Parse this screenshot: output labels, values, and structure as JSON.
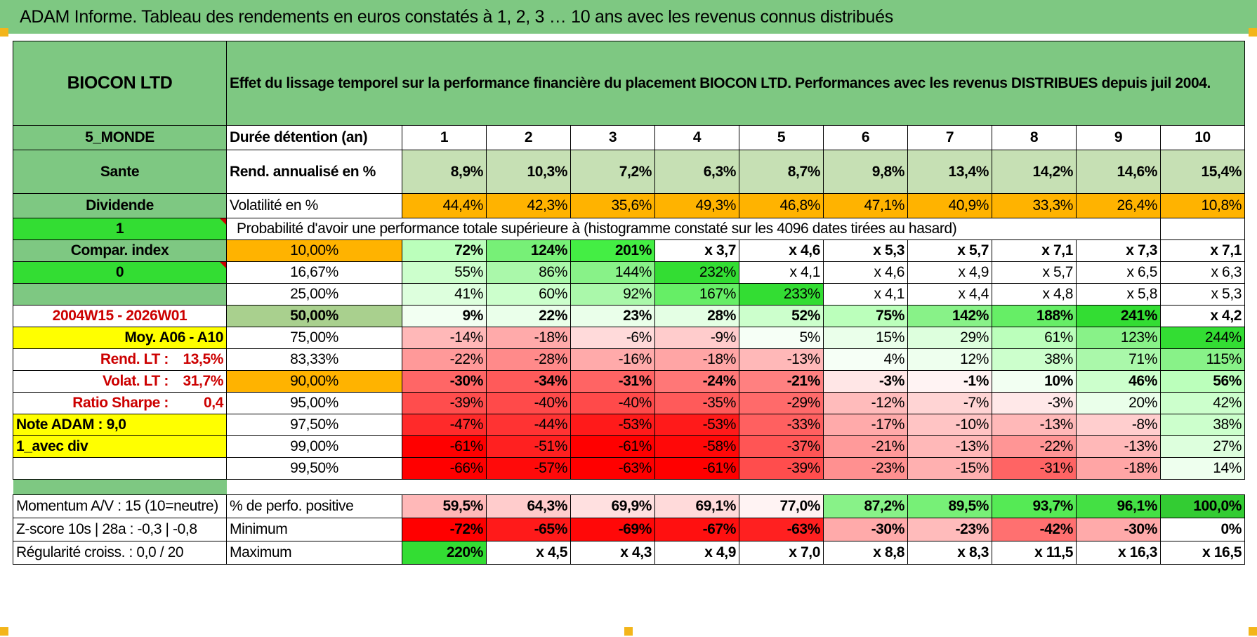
{
  "title": "ADAM Informe. Tableau des rendements en euros constatés à 1, 2, 3 … 10 ans avec les revenus connus distribués",
  "header": {
    "fund": "BIOCON LTD",
    "description": "Effet du lissage temporel sur la performance financière du placement BIOCON LTD. Performances avec les revenus DISTRIBUES depuis juil 2004."
  },
  "side": {
    "category": "5_MONDE",
    "sector": "Sante",
    "dividend": "Dividende",
    "flag_one": "1",
    "compar": "Compar. index",
    "flag_zero": "0",
    "period": "2004W15 - 2026W01",
    "moy": "Moy. A06 - A10",
    "rend_lt_label": "Rend. LT :",
    "rend_lt_value": "13,5%",
    "volat_lt_label": "Volat. LT :",
    "volat_lt_value": "31,7%",
    "sharpe_label": "Ratio Sharpe :",
    "sharpe_value": "0,4",
    "note": "Note ADAM : 9,0",
    "avec_div": "1_avec div",
    "momentum": "Momentum A/V : 15 (10=neutre)",
    "zscore": "Z-score 10s | 28a : -0,3 | -0,8",
    "regularite": "Régularité croiss. : 0,0 / 20"
  },
  "labels": {
    "duree": "Durée détention (an)",
    "rend": "Rend. annualisé en %",
    "volat": "Volatilité en %",
    "proba": "Probabilité d'avoir une performance totale supérieure à (histogramme constaté sur les 4096 dates tirées au hasard)",
    "pct_pos": "% de perfo. positive",
    "minimum": "Minimum",
    "maximum": "Maximum"
  },
  "years": [
    "1",
    "2",
    "3",
    "4",
    "5",
    "6",
    "7",
    "8",
    "9",
    "10"
  ],
  "rend": [
    "8,9%",
    "10,3%",
    "7,2%",
    "6,3%",
    "8,7%",
    "9,8%",
    "13,4%",
    "14,2%",
    "14,6%",
    "15,4%"
  ],
  "volat": [
    "44,4%",
    "42,3%",
    "35,6%",
    "49,3%",
    "46,8%",
    "47,1%",
    "40,9%",
    "33,3%",
    "26,4%",
    "10,8%"
  ],
  "proba_rows": [
    {
      "pct": "10,00%",
      "vals": [
        "72%",
        "124%",
        "201%",
        "x 3,7",
        "x 4,6",
        "x 5,3",
        "x 5,7",
        "x 7,1",
        "x 7,3",
        "x 7,1"
      ],
      "colors": [
        "#bbffbb",
        "#77f077",
        "#44ee44",
        "#ffffff",
        "#ffffff",
        "#ffffff",
        "#ffffff",
        "#ffffff",
        "#ffffff",
        "#ffffff"
      ]
    },
    {
      "pct": "16,67%",
      "vals": [
        "55%",
        "86%",
        "144%",
        "232%",
        "x 4,1",
        "x 4,6",
        "x 4,9",
        "x 5,7",
        "x 6,5",
        "x 6,3"
      ],
      "colors": [
        "#ccffcc",
        "#aaf8aa",
        "#88f288",
        "#33dd33",
        "#ffffff",
        "#ffffff",
        "#ffffff",
        "#ffffff",
        "#ffffff",
        "#ffffff"
      ]
    },
    {
      "pct": "25,00%",
      "vals": [
        "41%",
        "60%",
        "92%",
        "167%",
        "233%",
        "x 4,1",
        "x 4,4",
        "x 4,8",
        "x 5,8",
        "x 5,3"
      ],
      "colors": [
        "#ddffdd",
        "#ccffcc",
        "#aaf8aa",
        "#66ee66",
        "#33dd33",
        "#ffffff",
        "#ffffff",
        "#ffffff",
        "#ffffff",
        "#ffffff"
      ]
    },
    {
      "pct": "50,00%",
      "vals": [
        "9%",
        "22%",
        "23%",
        "28%",
        "52%",
        "75%",
        "142%",
        "188%",
        "241%",
        "x 4,2"
      ],
      "colors": [
        "#f2fff2",
        "#eaffea",
        "#eaffea",
        "#e4ffe4",
        "#ccffcc",
        "#bbffbb",
        "#88f288",
        "#66ee66",
        "#33dd33",
        "#ffffff"
      ]
    },
    {
      "pct": "75,00%",
      "vals": [
        "-14%",
        "-18%",
        "-6%",
        "-9%",
        "5%",
        "15%",
        "29%",
        "61%",
        "123%",
        "244%"
      ],
      "colors": [
        "#ffb8b8",
        "#ffaaaa",
        "#ffdada",
        "#ffcccc",
        "#f6fff6",
        "#eaffea",
        "#ddffdd",
        "#bbffbb",
        "#88f288",
        "#33dd33"
      ]
    },
    {
      "pct": "83,33%",
      "vals": [
        "-22%",
        "-28%",
        "-16%",
        "-18%",
        "-13%",
        "4%",
        "12%",
        "38%",
        "71%",
        "115%"
      ],
      "colors": [
        "#ff9999",
        "#ff8a8a",
        "#ffaaaa",
        "#ffa5a5",
        "#ffb8b8",
        "#f6fff6",
        "#eeffee",
        "#ccffcc",
        "#aaf8aa",
        "#88f288"
      ]
    },
    {
      "pct": "90,00%",
      "vals": [
        "-30%",
        "-34%",
        "-31%",
        "-24%",
        "-21%",
        "-3%",
        "-1%",
        "10%",
        "46%",
        "56%"
      ],
      "colors": [
        "#ff6666",
        "#ff5a5a",
        "#ff6464",
        "#ff7777",
        "#ff8080",
        "#ffe6e6",
        "#fff3f3",
        "#f2fff2",
        "#ccffcc",
        "#bbffbb"
      ]
    },
    {
      "pct": "95,00%",
      "vals": [
        "-39%",
        "-40%",
        "-40%",
        "-35%",
        "-29%",
        "-12%",
        "-7%",
        "-3%",
        "20%",
        "42%"
      ],
      "colors": [
        "#ff4d4d",
        "#ff4a4a",
        "#ff4a4a",
        "#ff5a5a",
        "#ff6a6a",
        "#ffbbbb",
        "#ffd4d4",
        "#ffe8e8",
        "#eaffea",
        "#ccffcc"
      ]
    },
    {
      "pct": "97,50%",
      "vals": [
        "-47%",
        "-44%",
        "-53%",
        "-53%",
        "-33%",
        "-17%",
        "-10%",
        "-13%",
        "-8%",
        "38%"
      ],
      "colors": [
        "#ff2a2a",
        "#ff3333",
        "#ff1a1a",
        "#ff1a1a",
        "#ff6060",
        "#ffaaaa",
        "#ffc4c4",
        "#ffb8b8",
        "#ffcece",
        "#ccffcc"
      ]
    },
    {
      "pct": "99,00%",
      "vals": [
        "-61%",
        "-51%",
        "-61%",
        "-58%",
        "-37%",
        "-21%",
        "-13%",
        "-22%",
        "-13%",
        "27%"
      ],
      "colors": [
        "#ff0000",
        "#ff2020",
        "#ff0000",
        "#ff0808",
        "#ff5555",
        "#ff9a9a",
        "#ffb8b8",
        "#ff9595",
        "#ffb8b8",
        "#ddffdd"
      ]
    },
    {
      "pct": "99,50%",
      "vals": [
        "-66%",
        "-57%",
        "-63%",
        "-61%",
        "-39%",
        "-23%",
        "-15%",
        "-31%",
        "-18%",
        "14%"
      ],
      "colors": [
        "#ff0000",
        "#ff0a0a",
        "#ff0000",
        "#ff0000",
        "#ff4d4d",
        "#ff9090",
        "#ffb0b0",
        "#ff6464",
        "#ffa5a5",
        "#eeffee"
      ]
    }
  ],
  "pct_pos": [
    "59,5%",
    "64,3%",
    "69,9%",
    "69,1%",
    "77,0%",
    "87,2%",
    "89,5%",
    "93,7%",
    "96,1%",
    "100,0%"
  ],
  "pct_pos_colors": [
    "#ffb8b8",
    "#ffcccc",
    "#ffe0e0",
    "#ffdada",
    "#fff3f3",
    "#88f288",
    "#77f077",
    "#55ea55",
    "#44e044",
    "#33cc33"
  ],
  "minimum": [
    "-72%",
    "-65%",
    "-69%",
    "-67%",
    "-63%",
    "-30%",
    "-23%",
    "-42%",
    "-30%",
    "0%"
  ],
  "minimum_colors": [
    "#ff0000",
    "#ff1a1a",
    "#ff0808",
    "#ff1010",
    "#ff2020",
    "#ffaaaa",
    "#ffbbbb",
    "#ff7070",
    "#ffaaaa",
    "#ffffff"
  ],
  "maximum": [
    "220%",
    "x 4,5",
    "x 4,3",
    "x 4,9",
    "x 7,0",
    "x 8,8",
    "x 8,3",
    "x 11,5",
    "x 16,3",
    "x 16,5"
  ],
  "maximum_colors": [
    "#33dd33",
    "#ffffff",
    "#ffffff",
    "#ffffff",
    "#ffffff",
    "#ffffff",
    "#ffffff",
    "#ffffff",
    "#ffffff",
    "#ffffff"
  ],
  "colors": {
    "green_header": "#7ec882",
    "bright_green": "#33dd33",
    "yellow": "#ffff00",
    "orange": "#ffb300",
    "label_red": "#cc0000",
    "rend_row_bg": "#c6e0b4",
    "pct50_bg": "#a9d08e"
  }
}
